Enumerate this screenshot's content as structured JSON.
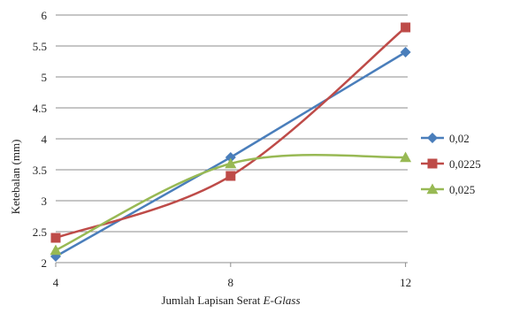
{
  "chart_data": {
    "type": "line",
    "x": [
      4,
      8,
      12
    ],
    "xlabel_prefix": "Jumlah Lapisan Serat ",
    "xlabel_italic": "E-Glass",
    "ylabel": "Ketebalan (mm)",
    "ylim": [
      2,
      6
    ],
    "yticks": [
      "2",
      "2.5",
      "3",
      "3.5",
      "4",
      "4.5",
      "5",
      "5.5",
      "6"
    ],
    "xticks": [
      "4",
      "8",
      "12"
    ],
    "grid": "horizontal",
    "legend_position": "right",
    "series": [
      {
        "name": "0,02",
        "values": [
          2.1,
          3.7,
          5.4
        ],
        "color": "#4a7ebb",
        "marker": "diamond",
        "smooth": false
      },
      {
        "name": "0,0225",
        "values": [
          2.4,
          3.4,
          5.8
        ],
        "color": "#be4b48",
        "marker": "square",
        "smooth": true
      },
      {
        "name": "0,025",
        "values": [
          2.2,
          3.6,
          3.7
        ],
        "color": "#98b954",
        "marker": "triangle",
        "smooth": true
      }
    ]
  }
}
